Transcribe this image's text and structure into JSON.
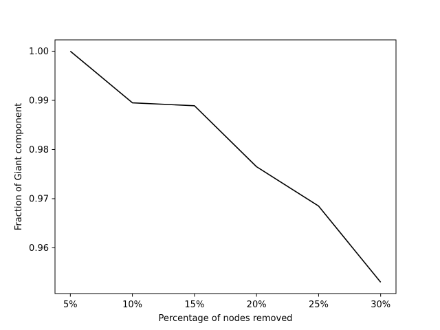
{
  "chart_data": {
    "type": "line",
    "categories": [
      "5%",
      "10%",
      "15%",
      "20%",
      "25%",
      "30%"
    ],
    "series": [
      {
        "values": [
          1.0,
          0.9895,
          0.9889,
          0.9765,
          0.9685,
          0.953
        ],
        "color": "#000000"
      }
    ],
    "title": "",
    "xlabel": "Percentage of nodes removed",
    "ylabel": "Fraction of Giant component",
    "ylim": [
      0.9507,
      1.0023
    ],
    "yticks": [
      0.96,
      0.97,
      0.98,
      0.99,
      1.0
    ],
    "ytick_labels": [
      "0.96",
      "0.97",
      "0.98",
      "0.99",
      "1.00"
    ],
    "grid": false,
    "legend": "none"
  }
}
